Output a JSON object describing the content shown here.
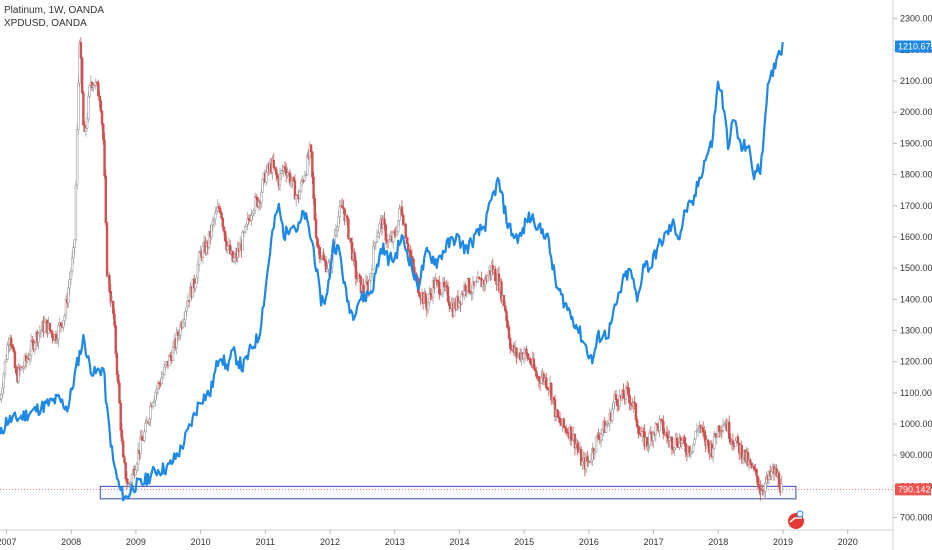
{
  "legend": {
    "primary": "Platinum, 1W, OANDA",
    "secondary": "XPDUSD, OANDA"
  },
  "price_tags": {
    "palladium_last": "1210.675",
    "platinum_last": "790.142"
  },
  "colors": {
    "palladium_line": "#1e88e5",
    "candle_up": "#9e9e9e",
    "candle_down": "#d05050",
    "platinum_tag": "#ef5350",
    "palladium_tag": "#1e88e5",
    "support_box": "#3b4db3",
    "axis_text": "#333333"
  },
  "chart_data": {
    "type": "line",
    "x_axis": {
      "ticks": [
        "2007",
        "2008",
        "2009",
        "2010",
        "2011",
        "2012",
        "2013",
        "2014",
        "2015",
        "2016",
        "2017",
        "2018",
        "2019",
        "2020"
      ],
      "xlim": [
        2006.9,
        2020.7
      ]
    },
    "y_axis": {
      "position": "right",
      "ticks": [
        "700.000",
        "800.000",
        "900.000",
        "1000.000",
        "1100.000",
        "1200.000",
        "1300.000",
        "1400.000",
        "1500.000",
        "1600.000",
        "1700.000",
        "1800.000",
        "1900.000",
        "2000.000",
        "2100.000",
        "2200.000",
        "2300.000"
      ],
      "ylim": [
        660,
        2360
      ]
    },
    "series": [
      {
        "style": "candlestick",
        "name": "Platinum",
        "points": [
          [
            2006.9,
            1080
          ],
          [
            2007.05,
            1300
          ],
          [
            2007.15,
            1150
          ],
          [
            2007.3,
            1200
          ],
          [
            2007.45,
            1280
          ],
          [
            2007.6,
            1320
          ],
          [
            2007.75,
            1280
          ],
          [
            2007.9,
            1350
          ],
          [
            2008.0,
            1500
          ],
          [
            2008.05,
            1560
          ],
          [
            2008.1,
            2000
          ],
          [
            2008.13,
            2250
          ],
          [
            2008.2,
            1900
          ],
          [
            2008.3,
            2100
          ],
          [
            2008.35,
            2100
          ],
          [
            2008.45,
            2050
          ],
          [
            2008.5,
            1900
          ],
          [
            2008.55,
            1500
          ],
          [
            2008.65,
            1350
          ],
          [
            2008.75,
            1050
          ],
          [
            2008.8,
            880
          ],
          [
            2008.88,
            800
          ],
          [
            2008.95,
            840
          ],
          [
            2009.05,
            920
          ],
          [
            2009.15,
            980
          ],
          [
            2009.25,
            1080
          ],
          [
            2009.4,
            1150
          ],
          [
            2009.5,
            1200
          ],
          [
            2009.6,
            1250
          ],
          [
            2009.8,
            1400
          ],
          [
            2009.9,
            1450
          ],
          [
            2010.0,
            1550
          ],
          [
            2010.1,
            1570
          ],
          [
            2010.2,
            1650
          ],
          [
            2010.3,
            1700
          ],
          [
            2010.4,
            1580
          ],
          [
            2010.5,
            1520
          ],
          [
            2010.6,
            1560
          ],
          [
            2010.7,
            1620
          ],
          [
            2010.8,
            1700
          ],
          [
            2010.9,
            1720
          ],
          [
            2011.0,
            1800
          ],
          [
            2011.1,
            1830
          ],
          [
            2011.2,
            1780
          ],
          [
            2011.3,
            1830
          ],
          [
            2011.4,
            1780
          ],
          [
            2011.5,
            1720
          ],
          [
            2011.6,
            1800
          ],
          [
            2011.7,
            1880
          ],
          [
            2011.75,
            1700
          ],
          [
            2011.8,
            1580
          ],
          [
            2011.9,
            1520
          ],
          [
            2012.0,
            1500
          ],
          [
            2012.1,
            1650
          ],
          [
            2012.2,
            1700
          ],
          [
            2012.3,
            1600
          ],
          [
            2012.4,
            1480
          ],
          [
            2012.5,
            1430
          ],
          [
            2012.6,
            1440
          ],
          [
            2012.7,
            1600
          ],
          [
            2012.8,
            1650
          ],
          [
            2012.9,
            1580
          ],
          [
            2013.0,
            1600
          ],
          [
            2013.1,
            1700
          ],
          [
            2013.2,
            1580
          ],
          [
            2013.3,
            1480
          ],
          [
            2013.4,
            1420
          ],
          [
            2013.5,
            1380
          ],
          [
            2013.6,
            1450
          ],
          [
            2013.7,
            1440
          ],
          [
            2013.8,
            1420
          ],
          [
            2013.9,
            1370
          ],
          [
            2014.0,
            1400
          ],
          [
            2014.1,
            1450
          ],
          [
            2014.2,
            1430
          ],
          [
            2014.3,
            1450
          ],
          [
            2014.4,
            1460
          ],
          [
            2014.5,
            1500
          ],
          [
            2014.6,
            1460
          ],
          [
            2014.7,
            1380
          ],
          [
            2014.8,
            1240
          ],
          [
            2014.9,
            1220
          ],
          [
            2015.0,
            1230
          ],
          [
            2015.1,
            1200
          ],
          [
            2015.2,
            1150
          ],
          [
            2015.3,
            1150
          ],
          [
            2015.4,
            1120
          ],
          [
            2015.5,
            1020
          ],
          [
            2015.6,
            990
          ],
          [
            2015.7,
            980
          ],
          [
            2015.8,
            940
          ],
          [
            2015.9,
            870
          ],
          [
            2016.0,
            880
          ],
          [
            2016.1,
            940
          ],
          [
            2016.2,
            980
          ],
          [
            2016.3,
            1000
          ],
          [
            2016.4,
            1080
          ],
          [
            2016.5,
            1080
          ],
          [
            2016.6,
            1100
          ],
          [
            2016.7,
            1050
          ],
          [
            2016.8,
            960
          ],
          [
            2016.9,
            940
          ],
          [
            2017.0,
            980
          ],
          [
            2017.1,
            1000
          ],
          [
            2017.2,
            960
          ],
          [
            2017.3,
            940
          ],
          [
            2017.4,
            950
          ],
          [
            2017.5,
            920
          ],
          [
            2017.6,
            930
          ],
          [
            2017.7,
            1000
          ],
          [
            2017.8,
            940
          ],
          [
            2017.9,
            920
          ],
          [
            2018.0,
            990
          ],
          [
            2018.1,
            1010
          ],
          [
            2018.2,
            960
          ],
          [
            2018.3,
            930
          ],
          [
            2018.4,
            900
          ],
          [
            2018.5,
            860
          ],
          [
            2018.6,
            830
          ],
          [
            2018.65,
            790
          ],
          [
            2018.7,
            800
          ],
          [
            2018.8,
            830
          ],
          [
            2018.85,
            850
          ],
          [
            2018.92,
            830
          ],
          [
            2018.98,
            790
          ]
        ]
      },
      {
        "style": "line",
        "name": "XPDUSD",
        "points": [
          [
            2006.9,
            960
          ],
          [
            2007.0,
            1010
          ],
          [
            2007.2,
            1020
          ],
          [
            2007.4,
            1040
          ],
          [
            2007.6,
            1060
          ],
          [
            2007.8,
            1080
          ],
          [
            2007.95,
            1050
          ],
          [
            2008.1,
            1200
          ],
          [
            2008.2,
            1280
          ],
          [
            2008.25,
            1210
          ],
          [
            2008.35,
            1160
          ],
          [
            2008.5,
            1180
          ],
          [
            2008.55,
            1050
          ],
          [
            2008.65,
            880
          ],
          [
            2008.75,
            790
          ],
          [
            2008.85,
            760
          ],
          [
            2008.95,
            800
          ],
          [
            2009.1,
            810
          ],
          [
            2009.3,
            850
          ],
          [
            2009.5,
            860
          ],
          [
            2009.7,
            920
          ],
          [
            2009.85,
            1000
          ],
          [
            2010.0,
            1080
          ],
          [
            2010.15,
            1100
          ],
          [
            2010.3,
            1230
          ],
          [
            2010.4,
            1180
          ],
          [
            2010.5,
            1230
          ],
          [
            2010.65,
            1180
          ],
          [
            2010.8,
            1250
          ],
          [
            2010.9,
            1280
          ],
          [
            2011.0,
            1430
          ],
          [
            2011.1,
            1600
          ],
          [
            2011.2,
            1700
          ],
          [
            2011.3,
            1600
          ],
          [
            2011.4,
            1650
          ],
          [
            2011.5,
            1620
          ],
          [
            2011.6,
            1680
          ],
          [
            2011.75,
            1560
          ],
          [
            2011.85,
            1400
          ],
          [
            2011.95,
            1400
          ],
          [
            2012.05,
            1580
          ],
          [
            2012.15,
            1550
          ],
          [
            2012.25,
            1410
          ],
          [
            2012.35,
            1350
          ],
          [
            2012.45,
            1400
          ],
          [
            2012.55,
            1410
          ],
          [
            2012.65,
            1430
          ],
          [
            2012.8,
            1570
          ],
          [
            2012.9,
            1530
          ],
          [
            2013.0,
            1530
          ],
          [
            2013.1,
            1600
          ],
          [
            2013.2,
            1550
          ],
          [
            2013.35,
            1440
          ],
          [
            2013.5,
            1550
          ],
          [
            2013.65,
            1520
          ],
          [
            2013.8,
            1570
          ],
          [
            2013.95,
            1600
          ],
          [
            2014.1,
            1560
          ],
          [
            2014.25,
            1600
          ],
          [
            2014.4,
            1640
          ],
          [
            2014.5,
            1720
          ],
          [
            2014.6,
            1780
          ],
          [
            2014.75,
            1640
          ],
          [
            2014.85,
            1600
          ],
          [
            2014.95,
            1600
          ],
          [
            2015.05,
            1660
          ],
          [
            2015.15,
            1660
          ],
          [
            2015.25,
            1620
          ],
          [
            2015.35,
            1610
          ],
          [
            2015.5,
            1440
          ],
          [
            2015.65,
            1380
          ],
          [
            2015.8,
            1320
          ],
          [
            2015.95,
            1250
          ],
          [
            2016.05,
            1200
          ],
          [
            2016.15,
            1280
          ],
          [
            2016.3,
            1290
          ],
          [
            2016.45,
            1400
          ],
          [
            2016.55,
            1470
          ],
          [
            2016.65,
            1490
          ],
          [
            2016.75,
            1390
          ],
          [
            2016.85,
            1520
          ],
          [
            2016.95,
            1500
          ],
          [
            2017.05,
            1560
          ],
          [
            2017.2,
            1610
          ],
          [
            2017.3,
            1640
          ],
          [
            2017.4,
            1600
          ],
          [
            2017.5,
            1690
          ],
          [
            2017.6,
            1700
          ],
          [
            2017.7,
            1780
          ],
          [
            2017.8,
            1850
          ],
          [
            2017.9,
            1900
          ],
          [
            2018.0,
            2100
          ],
          [
            2018.05,
            2060
          ],
          [
            2018.15,
            1900
          ],
          [
            2018.25,
            1980
          ],
          [
            2018.35,
            1880
          ],
          [
            2018.45,
            1900
          ],
          [
            2018.55,
            1800
          ],
          [
            2018.65,
            1820
          ],
          [
            2018.7,
            1920
          ],
          [
            2018.75,
            2060
          ],
          [
            2018.85,
            2130
          ],
          [
            2018.9,
            2180
          ],
          [
            2018.95,
            2200
          ],
          [
            2019.0,
            2210
          ]
        ]
      }
    ],
    "annotations": [
      {
        "type": "box",
        "label": "",
        "x": [
          2008.45,
          2019.2
        ],
        "y": [
          760,
          800
        ]
      },
      {
        "type": "hline",
        "y": 790
      }
    ],
    "grid": false,
    "legend": "top-left"
  }
}
